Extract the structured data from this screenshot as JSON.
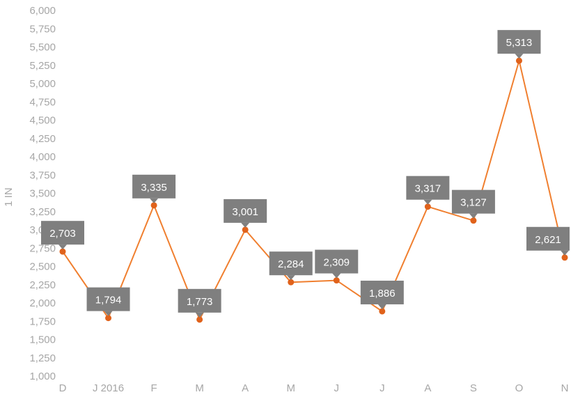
{
  "chart_data": {
    "type": "line",
    "ylabel": "1 IN",
    "ylim": [
      1000,
      6000
    ],
    "y_ticks": [
      "1,000",
      "1,250",
      "1,500",
      "1,750",
      "2,000",
      "2,250",
      "2,500",
      "2,750",
      "3,000",
      "3,250",
      "3,500",
      "3,750",
      "4,000",
      "4,250",
      "4,500",
      "4,750",
      "5,000",
      "5,250",
      "5,500",
      "5,750",
      "6,000"
    ],
    "y_tick_values": [
      1000,
      1250,
      1500,
      1750,
      2000,
      2250,
      2500,
      2750,
      3000,
      3250,
      3500,
      3750,
      4000,
      4250,
      4500,
      4750,
      5000,
      5250,
      5500,
      5750,
      6000
    ],
    "categories": [
      "D",
      "J 2016",
      "F",
      "M",
      "A",
      "M",
      "J",
      "J",
      "A",
      "S",
      "O",
      "N"
    ],
    "values": [
      2703,
      1794,
      3335,
      1773,
      3001,
      2284,
      2309,
      1886,
      3317,
      3127,
      5313,
      2621
    ],
    "value_labels": [
      "2,703",
      "1,794",
      "3,335",
      "1,773",
      "3,001",
      "2,284",
      "2,309",
      "1,886",
      "3,317",
      "3,127",
      "5,313",
      "2,621"
    ],
    "grid": false,
    "legend": "none",
    "colors": {
      "line": "#f07f2f",
      "marker": "#e0621b",
      "label_bg": "#7f7f7f",
      "label_text": "#ffffff",
      "axis_text": "#a6a6a6"
    }
  }
}
